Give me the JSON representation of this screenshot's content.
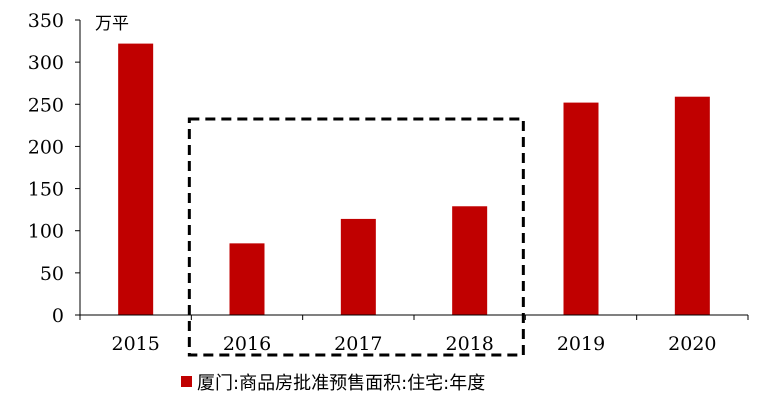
{
  "chart_data": {
    "type": "bar",
    "unit_label": "万平",
    "categories": [
      "2015",
      "2016",
      "2017",
      "2018",
      "2019",
      "2020"
    ],
    "series": [
      {
        "name": "厦门:商品房批准预售面积:住宅:年度",
        "values": [
          322,
          85,
          114,
          129,
          252,
          259
        ]
      }
    ],
    "ylim": [
      0,
      350
    ],
    "yticks": [
      0,
      50,
      100,
      150,
      200,
      250,
      300,
      350
    ],
    "bar_color": "#c00000",
    "highlight": {
      "from_category": "2016",
      "to_category": "2018",
      "style": "dashed-box"
    },
    "legend": {
      "position": "bottom"
    },
    "grid": false
  }
}
